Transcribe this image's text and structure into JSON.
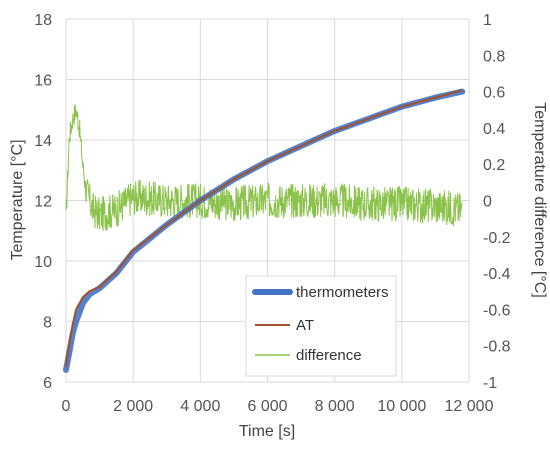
{
  "chart_data": {
    "type": "line",
    "title": "",
    "xlabel": "Time [s]",
    "ylabel_left": "Temperature [°C]",
    "ylabel_right": "Temperature difference [°C]",
    "xlim": [
      0,
      12000
    ],
    "ylim_left": [
      6,
      18
    ],
    "ylim_right": [
      -1,
      1
    ],
    "x_ticks": [
      0,
      2000,
      4000,
      6000,
      8000,
      10000,
      12000
    ],
    "x_tick_labels": [
      "0",
      "2 000",
      "4 000",
      "6 000",
      "8 000",
      "10 000",
      "12 000"
    ],
    "y_left_ticks": [
      6,
      8,
      10,
      12,
      14,
      16,
      18
    ],
    "y_left_tick_labels": [
      "6",
      "8",
      "10",
      "12",
      "14",
      "16",
      "18"
    ],
    "y_right_ticks": [
      -1,
      -0.8,
      -0.6,
      -0.4,
      -0.2,
      0,
      0.2,
      0.4,
      0.6,
      0.8,
      1
    ],
    "y_right_tick_labels": [
      "-1",
      "-0.8",
      "-0.6",
      "-0.4",
      "-0.2",
      "0",
      "0.2",
      "0.4",
      "0.6",
      "0.8",
      "1"
    ],
    "grid": true,
    "legend_position": "center-right",
    "series": [
      {
        "name": "thermometers",
        "axis": "left",
        "color": "#4472c4",
        "x": [
          0,
          100,
          200,
          300,
          500,
          700,
          1000,
          1500,
          2000,
          3000,
          4000,
          5000,
          6000,
          7000,
          8000,
          9000,
          10000,
          11000,
          11800
        ],
        "y": [
          6.4,
          7.0,
          7.6,
          8.0,
          8.6,
          8.9,
          9.1,
          9.6,
          10.3,
          11.2,
          12.0,
          12.7,
          13.3,
          13.8,
          14.3,
          14.7,
          15.1,
          15.4,
          15.6
        ]
      },
      {
        "name": "AT",
        "axis": "left",
        "color": "#a0522d",
        "x": [
          0,
          100,
          200,
          300,
          500,
          700,
          1000,
          1500,
          2000,
          3000,
          4000,
          5000,
          6000,
          7000,
          8000,
          9000,
          10000,
          11000,
          11800
        ],
        "y": [
          6.5,
          7.3,
          7.9,
          8.4,
          8.8,
          9.0,
          9.15,
          9.65,
          10.35,
          11.2,
          12.0,
          12.7,
          13.3,
          13.8,
          14.3,
          14.7,
          15.1,
          15.4,
          15.65
        ]
      },
      {
        "name": "difference",
        "axis": "right",
        "color": "#8bc34a",
        "x": [
          0,
          100,
          200,
          300,
          400,
          500,
          600,
          800,
          1000,
          1500,
          2000,
          3000,
          4000,
          5000,
          6000,
          7000,
          8000,
          9000,
          10000,
          11000,
          11800
        ],
        "y": [
          -0.1,
          0.35,
          0.45,
          0.5,
          0.4,
          0.2,
          0.05,
          -0.05,
          -0.08,
          -0.05,
          0.02,
          0.0,
          0.0,
          -0.02,
          0.0,
          0.0,
          0.0,
          -0.02,
          -0.02,
          -0.03,
          -0.05
        ],
        "noise_amplitude": 0.1
      }
    ]
  }
}
